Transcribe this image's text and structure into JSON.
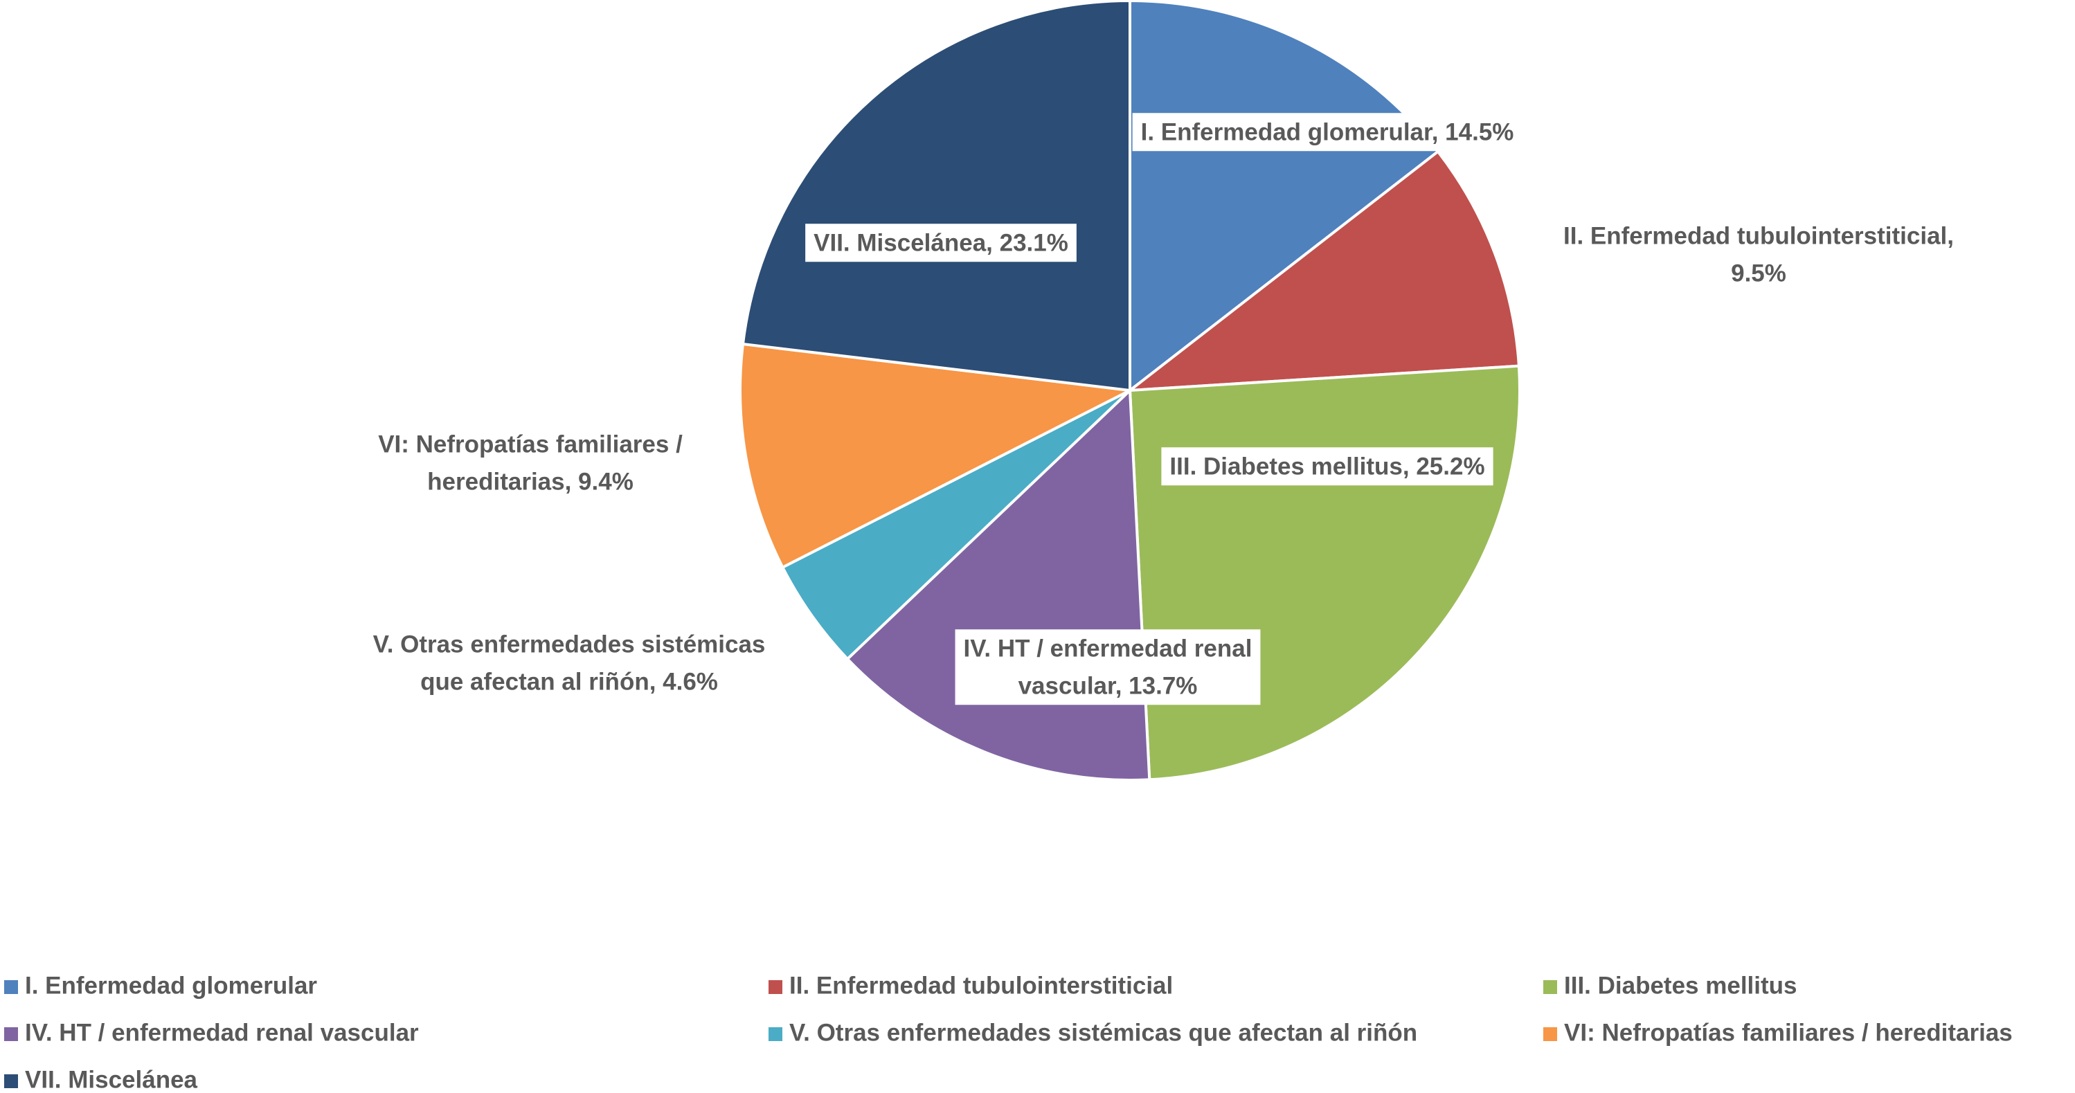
{
  "chart_data": {
    "type": "pie",
    "slices": [
      {
        "label": "I. Enfermedad glomerular",
        "value": 14.5,
        "data_label": [
          "I. Enfermedad glomerular, 14.5%"
        ],
        "color": "#4F81BD",
        "boxed": true
      },
      {
        "label": "II. Enfermedad tubulointerstiticial",
        "value": 9.5,
        "data_label": [
          "II. Enfermedad tubulointerstiticial,",
          "9.5%"
        ],
        "color": "#C0504D",
        "boxed": false
      },
      {
        "label": "III. Diabetes mellitus",
        "value": 25.2,
        "data_label": [
          "III. Diabetes mellitus, 25.2%"
        ],
        "color": "#9BBB59",
        "boxed": true
      },
      {
        "label": "IV. HT / enfermedad renal vascular",
        "value": 13.7,
        "data_label": [
          "IV. HT / enfermedad renal",
          "vascular, 13.7%"
        ],
        "color": "#8064A2",
        "boxed": true
      },
      {
        "label": "V. Otras enfermedades sistémicas que afectan al riñón",
        "value": 4.6,
        "data_label": [
          "V. Otras enfermedades sistémicas",
          "que afectan al riñón, 4.6%"
        ],
        "color": "#4BACC6",
        "boxed": false
      },
      {
        "label": "VI: Nefropatías familiares / hereditarias",
        "value": 9.4,
        "data_label": [
          "VI: Nefropatías familiares /",
          "hereditarias, 9.4%"
        ],
        "color": "#F79646",
        "boxed": false
      },
      {
        "label": "VII. Miscelánea",
        "value": 23.1,
        "data_label": [
          "VII. Miscelánea, 23.1%"
        ],
        "color": "#2C4D75",
        "boxed": true
      }
    ],
    "legend": {
      "position": "bottom"
    },
    "start_angle_deg": 0,
    "direction": "clockwise"
  }
}
